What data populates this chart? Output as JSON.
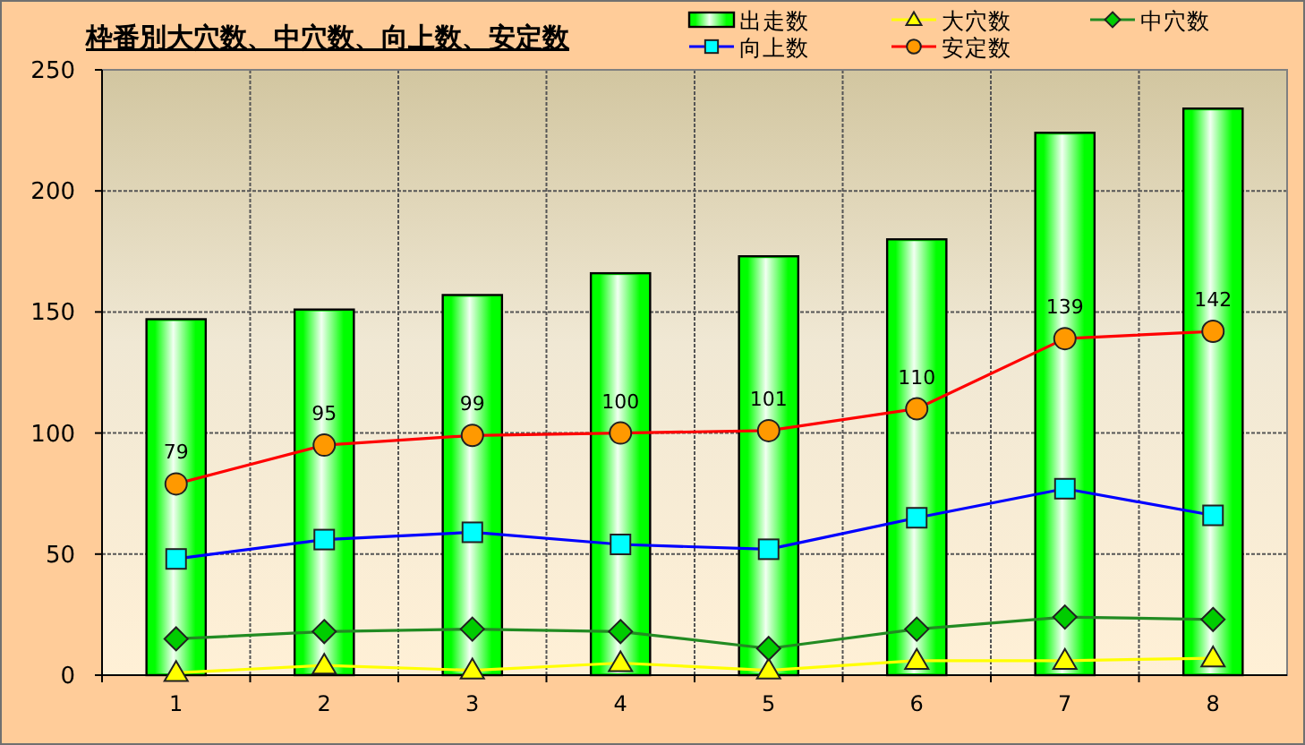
{
  "chart_data": {
    "type": "bar",
    "title": "枠番別大穴数、中穴数、向上数、安定数",
    "categories": [
      "1",
      "2",
      "3",
      "4",
      "5",
      "6",
      "7",
      "8"
    ],
    "ylim": [
      0,
      250
    ],
    "yticks": [
      0,
      50,
      100,
      150,
      200,
      250
    ],
    "grid": true,
    "legend": "top right",
    "series": [
      {
        "name": "出走数",
        "color": "#00ff00",
        "values": [
          147,
          151,
          157,
          166,
          173,
          180,
          224,
          234
        ]
      },
      {
        "name": "大穴数",
        "type": "line",
        "color": "#ffff00",
        "marker": "triangle",
        "values": [
          1,
          4,
          2,
          5,
          2,
          6,
          6,
          7
        ]
      },
      {
        "name": "中穴数",
        "type": "line",
        "color": "#228b22",
        "colors": [
          "#00cc00",
          "#00cc00",
          "#00cc00",
          "#00cc00",
          "#00cc00",
          "#00cc00",
          "#00cc00",
          "#00cc00"
        ],
        "marker": "diamond",
        "values": [
          15,
          18,
          19,
          18,
          11,
          19,
          24,
          23
        ]
      },
      {
        "name": "向上数",
        "type": "line",
        "color": "#0000ff",
        "colors": [
          "#00ffff",
          "#00ffff",
          "#00ffff",
          "#00ffff",
          "#00ffff",
          "#00ffff",
          "#00ffff",
          "#00ffff"
        ],
        "marker": "square",
        "values": [
          48,
          56,
          59,
          54,
          52,
          65,
          77,
          66
        ]
      },
      {
        "name": "安定数",
        "type": "line",
        "color": "#ff0000",
        "colors": [
          "#ff9900",
          "#ff9900",
          "#ff9900",
          "#ff9900",
          "#ff9900",
          "#ff9900",
          "#ff9900",
          "#ff9900"
        ],
        "marker": "circle",
        "values": [
          79,
          95,
          99,
          100,
          101,
          110,
          139,
          142
        ],
        "value_labels": [
          "79",
          "95",
          "99",
          "100",
          "101",
          "110",
          "139",
          "142"
        ]
      }
    ]
  }
}
